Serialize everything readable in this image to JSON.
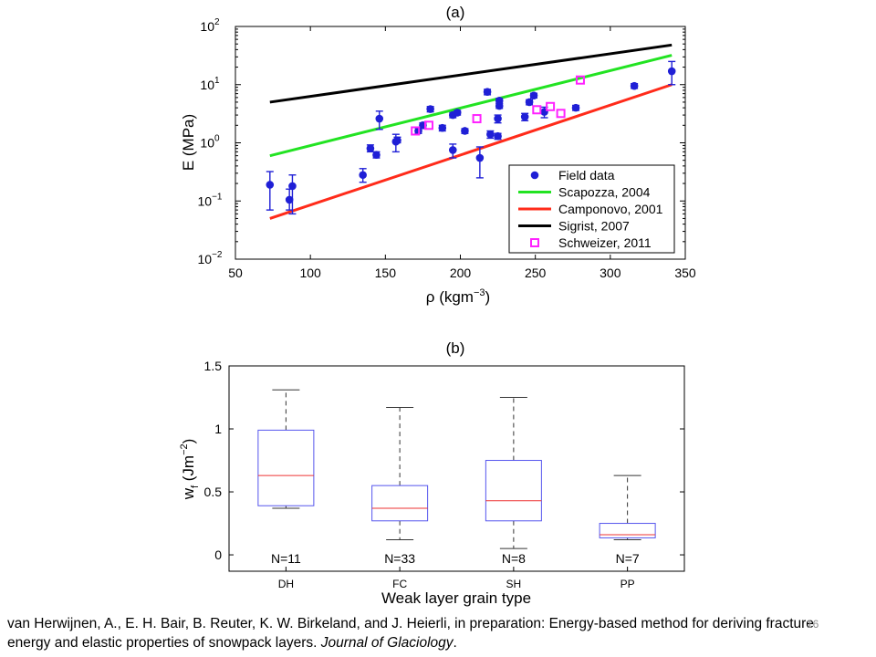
{
  "chart_data": [
    {
      "type": "scatter",
      "title": "(a)",
      "xlabel": "ρ (kgm",
      "xlabel_sup": "−3",
      "xlabel_close": ")",
      "ylabel": "E (MPa)",
      "x_ticks": [
        50,
        100,
        150,
        200,
        250,
        300,
        350
      ],
      "xlim": [
        50,
        350
      ],
      "y_scale": "log",
      "ylim": [
        0.01,
        100
      ],
      "y_ticks": [
        {
          "value": 0.01,
          "base": "10",
          "exp": "−2"
        },
        {
          "value": 0.1,
          "base": "10",
          "exp": "−1"
        },
        {
          "value": 1,
          "base": "10",
          "exp": "0"
        },
        {
          "value": 10,
          "base": "10",
          "exp": "1"
        },
        {
          "value": 100,
          "base": "10",
          "exp": "2"
        }
      ],
      "legend_position": "bottom-right",
      "series": [
        {
          "name": "Field data",
          "kind": "points_errorbars",
          "color": "#1f1fd6",
          "points": [
            {
              "x": 73,
              "y": 0.19,
              "lo": 0.07,
              "hi": 0.32
            },
            {
              "x": 86,
              "y": 0.105,
              "lo": 0.07,
              "hi": 0.16
            },
            {
              "x": 88,
              "y": 0.18,
              "lo": 0.06,
              "hi": 0.28
            },
            {
              "x": 135,
              "y": 0.28,
              "lo": 0.21,
              "hi": 0.36
            },
            {
              "x": 140,
              "y": 0.8,
              "lo": 0.7,
              "hi": 0.92
            },
            {
              "x": 144,
              "y": 0.62,
              "lo": 0.55,
              "hi": 0.7
            },
            {
              "x": 146,
              "y": 2.6,
              "lo": 1.7,
              "hi": 3.5
            },
            {
              "x": 157,
              "y": 1.05,
              "lo": 0.7,
              "hi": 1.4
            },
            {
              "x": 158,
              "y": 1.1,
              "lo": 1.0,
              "hi": 1.25
            },
            {
              "x": 172,
              "y": 1.6,
              "lo": 1.45,
              "hi": 1.8
            },
            {
              "x": 175,
              "y": 2.0,
              "lo": 1.8,
              "hi": 2.2
            },
            {
              "x": 180,
              "y": 3.8,
              "lo": 3.4,
              "hi": 4.2
            },
            {
              "x": 188,
              "y": 1.8,
              "lo": 1.6,
              "hi": 2.0
            },
            {
              "x": 195,
              "y": 0.75,
              "lo": 0.55,
              "hi": 0.95
            },
            {
              "x": 195,
              "y": 3.0,
              "lo": 2.7,
              "hi": 3.3
            },
            {
              "x": 198,
              "y": 3.3,
              "lo": 3.0,
              "hi": 3.6
            },
            {
              "x": 203,
              "y": 1.6,
              "lo": 1.45,
              "hi": 1.75
            },
            {
              "x": 213,
              "y": 0.55,
              "lo": 0.25,
              "hi": 0.85
            },
            {
              "x": 218,
              "y": 7.5,
              "lo": 6.7,
              "hi": 8.3
            },
            {
              "x": 220,
              "y": 1.4,
              "lo": 1.2,
              "hi": 1.6
            },
            {
              "x": 225,
              "y": 1.3,
              "lo": 1.15,
              "hi": 1.45
            },
            {
              "x": 225,
              "y": 2.6,
              "lo": 2.2,
              "hi": 3.0
            },
            {
              "x": 226,
              "y": 4.3,
              "lo": 3.9,
              "hi": 4.7
            },
            {
              "x": 226,
              "y": 5.3,
              "lo": 4.8,
              "hi": 5.8
            },
            {
              "x": 243,
              "y": 2.8,
              "lo": 2.4,
              "hi": 3.2
            },
            {
              "x": 246,
              "y": 5.0,
              "lo": 4.5,
              "hi": 5.5
            },
            {
              "x": 249,
              "y": 6.5,
              "lo": 5.9,
              "hi": 7.1
            },
            {
              "x": 256,
              "y": 3.4,
              "lo": 2.7,
              "hi": 4.1
            },
            {
              "x": 277,
              "y": 4.0,
              "lo": 3.6,
              "hi": 4.4
            },
            {
              "x": 316,
              "y": 9.5,
              "lo": 8.6,
              "hi": 10.4
            },
            {
              "x": 341,
              "y": 17.0,
              "lo": 10.0,
              "hi": 25.0
            }
          ]
        },
        {
          "name": "Scapozza, 2004",
          "kind": "line",
          "color": "#22e322",
          "x": [
            73,
            341
          ],
          "y": [
            0.6,
            32
          ]
        },
        {
          "name": "Camponovo, 2001",
          "kind": "line",
          "color": "#ff2b1a",
          "x": [
            73,
            341
          ],
          "y": [
            0.05,
            10
          ]
        },
        {
          "name": "Sigrist, 2007",
          "kind": "line",
          "color": "#000000",
          "x": [
            73,
            341
          ],
          "y": [
            5,
            48
          ]
        },
        {
          "name": "Schweizer, 2011",
          "kind": "squares",
          "color": "#ff22ff",
          "points": [
            {
              "x": 170,
              "y": 1.6
            },
            {
              "x": 179,
              "y": 2.0
            },
            {
              "x": 211,
              "y": 2.6
            },
            {
              "x": 251,
              "y": 3.7
            },
            {
              "x": 260,
              "y": 4.2
            },
            {
              "x": 267,
              "y": 3.2
            },
            {
              "x": 280,
              "y": 12.0
            }
          ]
        }
      ]
    },
    {
      "type": "box",
      "title": "(b)",
      "xlabel": "Weak layer grain type",
      "ylabel_main": "w",
      "ylabel_sub": "f",
      "ylabel_unit": " (Jm",
      "ylabel_sup": "−2",
      "ylabel_close": ")",
      "ylim": [
        -0.13,
        1.5
      ],
      "y_ticks": [
        0,
        0.5,
        1,
        1.5
      ],
      "y_tick_labels": [
        "0",
        "0.5",
        "1",
        "1.5"
      ],
      "box_color": "#5555ee",
      "median_color": "#ee3333",
      "whisker_color": "#333333",
      "categories": [
        "DH",
        "FC",
        "SH",
        "PP"
      ],
      "boxes": [
        {
          "label": "DH",
          "n_label": "N=11",
          "whisker_low": 0.37,
          "q1": 0.39,
          "median": 0.63,
          "q3": 0.99,
          "whisker_high": 1.31
        },
        {
          "label": "FC",
          "n_label": "N=33",
          "whisker_low": 0.12,
          "q1": 0.27,
          "median": 0.37,
          "q3": 0.55,
          "whisker_high": 1.17
        },
        {
          "label": "SH",
          "n_label": "N=8",
          "whisker_low": 0.05,
          "q1": 0.27,
          "median": 0.43,
          "q3": 0.75,
          "whisker_high": 1.25
        },
        {
          "label": "PP",
          "n_label": "N=7",
          "whisker_low": 0.12,
          "q1": 0.135,
          "median": 0.16,
          "q3": 0.25,
          "whisker_high": 0.63
        }
      ]
    }
  ],
  "caption": {
    "text_before": "van Herwijnen, A., E. H. Bair, B. Reuter, K. W. Birkeland, and J. Heierli, in preparation: Energy-based method for deriving fracture energy and elastic properties of snowpack layers. ",
    "journal": "Journal of Glaciology",
    "text_after": "."
  },
  "slide_number": "16"
}
